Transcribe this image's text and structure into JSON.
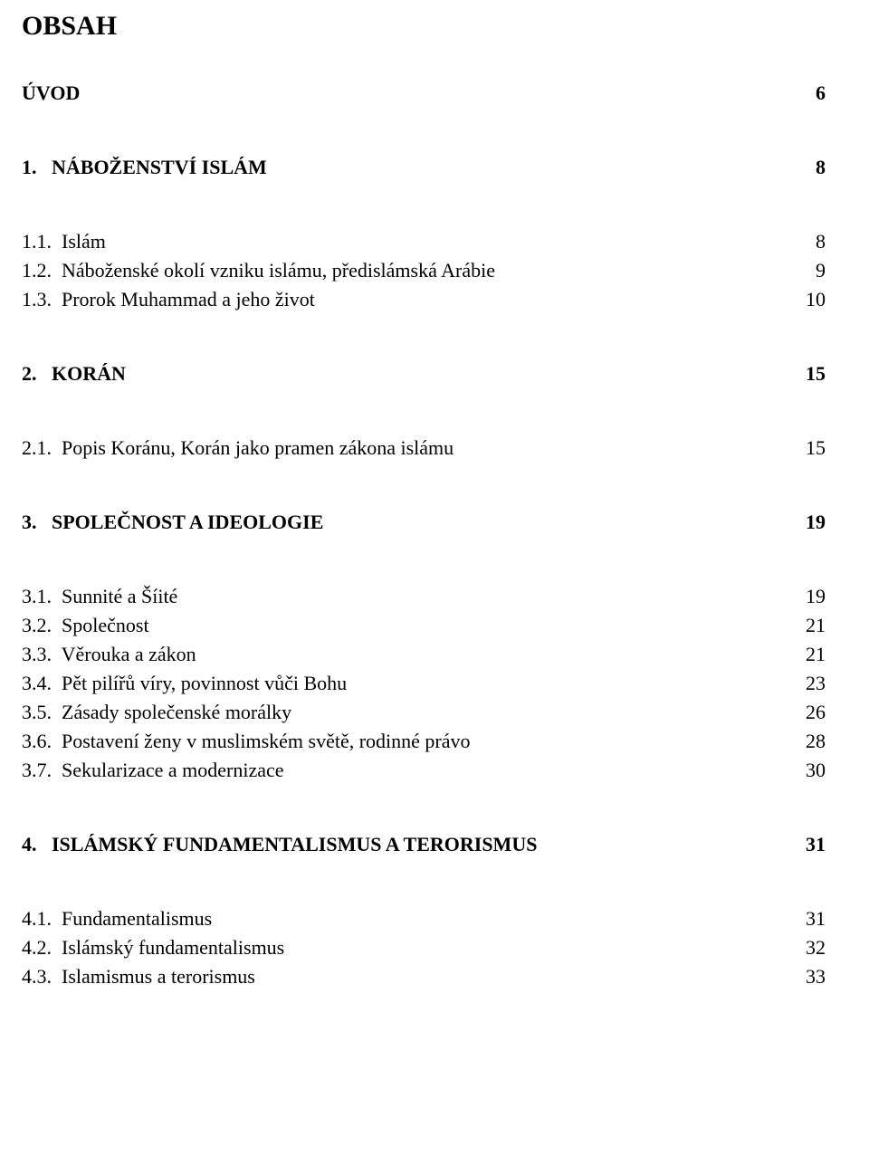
{
  "title": "OBSAH",
  "rows": [
    {
      "label": "ÚVOD",
      "page": "6",
      "bold": true
    },
    {
      "label": "1.   NÁBOŽENSTVÍ ISLÁM",
      "page": "8",
      "bold": true
    },
    {
      "label": "1.1.  Islám",
      "page": "8",
      "bold": false
    },
    {
      "label": "1.2.  Náboženské okolí vzniku islámu, předislámská Arábie",
      "page": "9",
      "bold": false
    },
    {
      "label": "1.3.  Prorok Muhammad a jeho život",
      "page": "10",
      "bold": false
    },
    {
      "label": "2.   KORÁN",
      "page": "15",
      "bold": true
    },
    {
      "label": "2.1.  Popis Koránu, Korán jako pramen zákona islámu",
      "page": "15",
      "bold": false
    },
    {
      "label": "3.   SPOLEČNOST A IDEOLOGIE",
      "page": "19",
      "bold": true
    },
    {
      "label": "3.1.  Sunnité a Šíité",
      "page": "19",
      "bold": false
    },
    {
      "label": "3.2.  Společnost",
      "page": "21",
      "bold": false
    },
    {
      "label": "3.3.  Věrouka a zákon",
      "page": "21",
      "bold": false
    },
    {
      "label": "3.4.  Pět pilířů víry, povinnost vůči Bohu",
      "page": "23",
      "bold": false
    },
    {
      "label": "3.5.  Zásady společenské morálky",
      "page": "26",
      "bold": false
    },
    {
      "label": "3.6.  Postavení ženy v muslimském světě, rodinné právo",
      "page": "28",
      "bold": false
    },
    {
      "label": "3.7.  Sekularizace a modernizace",
      "page": "30",
      "bold": false
    },
    {
      "label": "4.   ISLÁMSKÝ FUNDAMENTALISMUS A TERORISMUS",
      "page": "31",
      "bold": true
    },
    {
      "label": "4.1.  Fundamentalismus",
      "page": "31",
      "bold": false
    },
    {
      "label": "4.2.  Islámský fundamentalismus",
      "page": "32",
      "bold": false
    },
    {
      "label": "4.3.  Islamismus a terorismus",
      "page": "33",
      "bold": false
    }
  ],
  "colors": {
    "text": "#000000",
    "background": "#ffffff"
  },
  "fonts": {
    "family": "Times New Roman",
    "title_size_pt": 22,
    "row_size_pt": 16
  }
}
